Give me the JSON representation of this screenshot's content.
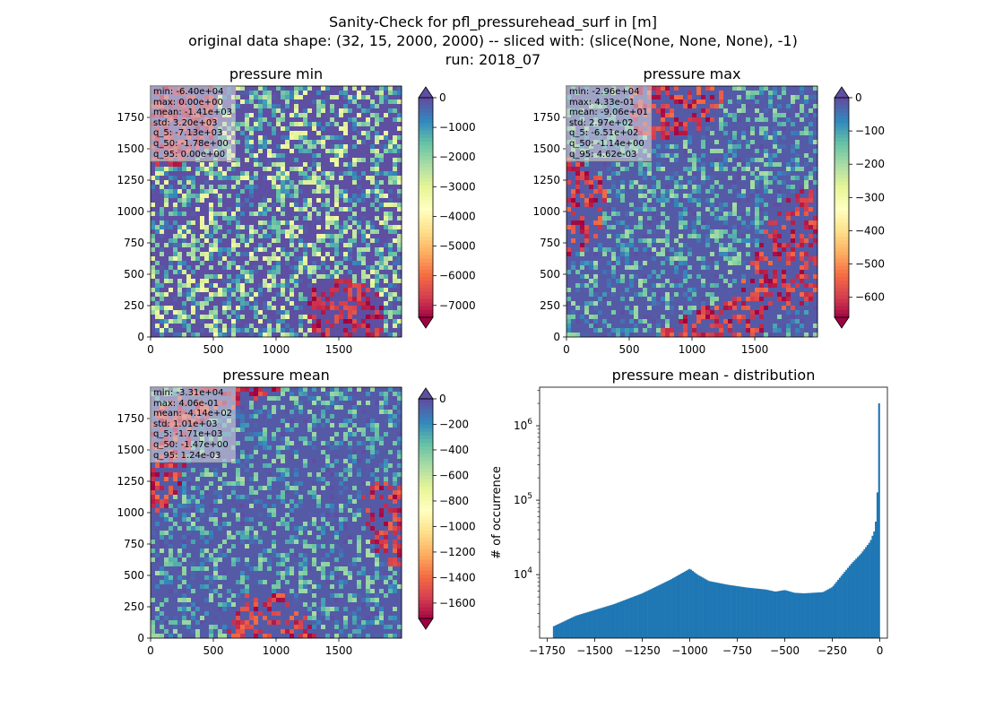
{
  "figure": {
    "title_lines": [
      "Sanity-Check for pfl_pressurehead_surf in [m]",
      "original data shape: (32, 15, 2000, 2000) -- sliced with: (slice(None, None, None), -1)",
      "run: 2018_07"
    ]
  },
  "chart_data": [
    {
      "type": "heatmap",
      "title": "pressure min",
      "xlim": [
        0,
        2000
      ],
      "ylim": [
        0,
        2000
      ],
      "xticks": [
        0,
        500,
        1000,
        1500
      ],
      "yticks": [
        0,
        250,
        500,
        750,
        1000,
        1250,
        1500,
        1750
      ],
      "colormap": "Spectral",
      "colorbar": {
        "range": [
          -7400,
          0
        ],
        "ticks": [
          0,
          -1000,
          -2000,
          -3000,
          -4000,
          -5000,
          -6000,
          -7000
        ],
        "extend": "both"
      },
      "stats": [
        "min: -6.40e+04",
        "max: 0.00e+00",
        "mean: -1.41e+03",
        "std: 3.20e+03",
        "q_5: -7.13e+03",
        "q_50: -1.78e+00",
        "q_95: 0.00e+00"
      ]
    },
    {
      "type": "heatmap",
      "title": "pressure max",
      "xlim": [
        0,
        2000
      ],
      "ylim": [
        0,
        2000
      ],
      "xticks": [
        0,
        500,
        1000,
        1500
      ],
      "yticks": [
        0,
        250,
        500,
        750,
        1000,
        1250,
        1500,
        1750
      ],
      "colormap": "Spectral",
      "colorbar": {
        "range": [
          -660,
          0
        ],
        "ticks": [
          0,
          -100,
          -200,
          -300,
          -400,
          -500,
          -600
        ],
        "extend": "both"
      },
      "stats": [
        "min: -2.96e+04",
        "max: 4.33e-01",
        "mean: -9.06e+01",
        "std: 2.97e+02",
        "q_5: -6.51e+02",
        "q_50: -1.14e+00",
        "q_95: 4.62e-03"
      ]
    },
    {
      "type": "heatmap",
      "title": "pressure mean",
      "xlim": [
        0,
        2000
      ],
      "ylim": [
        0,
        2000
      ],
      "xticks": [
        0,
        500,
        1000,
        1500
      ],
      "yticks": [
        0,
        250,
        500,
        750,
        1000,
        1250,
        1500,
        1750
      ],
      "colormap": "Spectral",
      "colorbar": {
        "range": [
          -1720,
          0
        ],
        "ticks": [
          0,
          -200,
          -400,
          -600,
          -800,
          -1000,
          -1200,
          -1400,
          -1600
        ],
        "extend": "both"
      },
      "stats": [
        "min: -3.31e+04",
        "max: 4.06e-01",
        "mean: -4.14e+02",
        "std: 1.01e+03",
        "q_5: -1.71e+03",
        "q_50: -1.47e+00",
        "q_95: 1.24e-03"
      ]
    },
    {
      "type": "bar",
      "title": "pressure mean - distribution",
      "ylabel": "# of occurrence",
      "xlabel": "",
      "yscale": "log",
      "xlim": [
        -1790,
        40
      ],
      "ylim": [
        1400,
        3300000
      ],
      "xticks": [
        -1750,
        -1500,
        -1250,
        -1000,
        -750,
        -500,
        -250,
        0
      ],
      "xtick_labels": [
        "−1750",
        "−1500",
        "−1250",
        "−1000",
        "−750",
        "−500",
        "−250",
        "0"
      ],
      "yticks": [
        10000,
        100000,
        1000000
      ],
      "ytick_labels": [
        "10^4",
        "10^5",
        "10^6"
      ],
      "color": "#1f77b4",
      "bins": {
        "x_start": -1720,
        "x_end": 0,
        "width": 8.6,
        "profile": [
          [
            -1720,
            2000
          ],
          [
            -1600,
            2800
          ],
          [
            -1400,
            4000
          ],
          [
            -1250,
            5600
          ],
          [
            -1100,
            8600
          ],
          [
            -1000,
            12000
          ],
          [
            -960,
            10000
          ],
          [
            -900,
            8200
          ],
          [
            -800,
            7300
          ],
          [
            -700,
            6700
          ],
          [
            -600,
            6300
          ],
          [
            -550,
            5900
          ],
          [
            -500,
            6200
          ],
          [
            -450,
            5700
          ],
          [
            -400,
            5600
          ],
          [
            -300,
            5800
          ],
          [
            -250,
            6800
          ],
          [
            -200,
            9800
          ],
          [
            -150,
            14000
          ],
          [
            -100,
            19000
          ],
          [
            -50,
            28000
          ],
          [
            -30,
            38000
          ],
          [
            -15,
            65000
          ],
          [
            -4,
            2200000
          ]
        ]
      }
    }
  ]
}
